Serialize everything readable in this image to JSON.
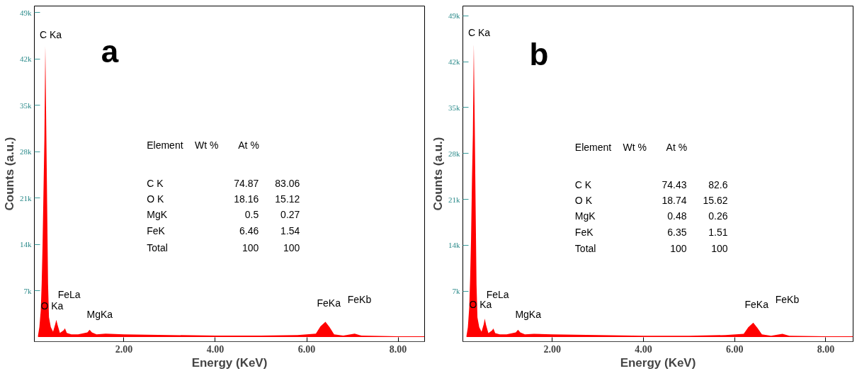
{
  "chart_data": [
    {
      "type": "area",
      "xlabel": "Energy (KeV)",
      "ylabel": "Counts (a.u.)",
      "x": [
        0.12,
        0.15,
        0.18,
        0.2,
        0.22,
        0.24,
        0.26,
        0.28,
        0.3,
        0.32,
        0.34,
        0.36,
        0.4,
        0.45,
        0.5,
        0.52,
        0.55,
        0.6,
        0.68,
        0.71,
        0.75,
        0.85,
        1.0,
        1.2,
        1.25,
        1.3,
        1.4,
        1.6,
        2.0,
        3.0,
        4.0,
        5.0,
        5.8,
        6.2,
        6.3,
        6.41,
        6.5,
        6.6,
        6.8,
        7.05,
        7.2,
        8.0,
        8.58
      ],
      "series": [
        {
          "color": "#ff0000",
          "values": [
            200,
            1500,
            4000,
            8000,
            14000,
            22000,
            30000,
            44000,
            32000,
            20000,
            8000,
            3000,
            1500,
            800,
            2000,
            2600,
            1800,
            600,
            1000,
            1300,
            600,
            400,
            400,
            700,
            1100,
            700,
            400,
            500,
            400,
            300,
            200,
            200,
            300,
            500,
            1600,
            2300,
            1500,
            400,
            200,
            500,
            200,
            100,
            100
          ]
        }
      ],
      "xlim": [
        0.04,
        8.58
      ],
      "ylim": [
        -700,
        50000
      ],
      "xticks": [
        {
          "value": 2,
          "label": "2.00"
        },
        {
          "value": 4,
          "label": "4.00"
        },
        {
          "value": 6,
          "label": "6.00"
        },
        {
          "value": 8,
          "label": "8.00"
        }
      ],
      "yticks": [
        {
          "value": 7000,
          "label": "7k"
        },
        {
          "value": 14000,
          "label": "14k"
        },
        {
          "value": 21000,
          "label": "21k"
        },
        {
          "value": 28000,
          "label": "28k"
        },
        {
          "value": 35000,
          "label": "35k"
        },
        {
          "value": 42000,
          "label": "42k"
        },
        {
          "value": 49000,
          "label": "49k"
        }
      ],
      "grid": false,
      "annotations": [
        "a",
        "Element",
        "Wt %",
        "At %",
        "C K",
        "74.87",
        "83.06",
        "O K",
        "18.16",
        "15.12",
        "MgK",
        "0.5",
        "0.27",
        "FeK",
        "6.46",
        "1.54",
        "Total",
        "100",
        "100",
        {
          "text": "C Ka",
          "x": 0.28,
          "y": 44000
        },
        {
          "text": "O Ka",
          "x": 0.52,
          "y": 2600
        },
        {
          "text": "FeLa",
          "x": 0.71,
          "y": 1300
        },
        {
          "text": "MgKa",
          "x": 1.25,
          "y": 1100
        },
        {
          "text": "FeKa",
          "x": 6.41,
          "y": 2300
        },
        {
          "text": "FeKb",
          "x": 7.05,
          "y": 500
        }
      ]
    },
    {
      "type": "area",
      "xlabel": "Energy (KeV)",
      "ylabel": "Counts (a.u.)",
      "x": [
        0.12,
        0.15,
        0.18,
        0.2,
        0.22,
        0.24,
        0.26,
        0.28,
        0.3,
        0.32,
        0.34,
        0.36,
        0.4,
        0.45,
        0.5,
        0.52,
        0.55,
        0.6,
        0.68,
        0.71,
        0.75,
        0.85,
        1.0,
        1.2,
        1.25,
        1.3,
        1.4,
        1.6,
        2.0,
        3.0,
        4.0,
        5.0,
        5.8,
        6.2,
        6.3,
        6.41,
        6.5,
        6.6,
        6.8,
        7.05,
        7.2,
        8.0,
        8.6
      ],
      "series": [
        {
          "color": "#ff0000",
          "values": [
            200,
            1500,
            4500,
            9000,
            15000,
            24000,
            31000,
            44700,
            33000,
            20000,
            8000,
            3000,
            1500,
            800,
            2000,
            2800,
            1800,
            600,
            1000,
            1300,
            600,
            400,
            400,
            700,
            1100,
            700,
            400,
            500,
            400,
            300,
            200,
            200,
            300,
            500,
            1500,
            2200,
            1400,
            400,
            200,
            500,
            200,
            100,
            100
          ]
        }
      ],
      "xlim": [
        0.04,
        8.6
      ],
      "ylim": [
        -700,
        50500
      ],
      "xticks": [
        {
          "value": 2,
          "label": "2.00"
        },
        {
          "value": 4,
          "label": "4.00"
        },
        {
          "value": 6,
          "label": "6.00"
        },
        {
          "value": 8,
          "label": "8.00"
        }
      ],
      "yticks": [
        {
          "value": 7000,
          "label": "7k"
        },
        {
          "value": 14000,
          "label": "14k"
        },
        {
          "value": 21000,
          "label": "21k"
        },
        {
          "value": 28000,
          "label": "28k"
        },
        {
          "value": 35000,
          "label": "35k"
        },
        {
          "value": 42000,
          "label": "42k"
        },
        {
          "value": 49000,
          "label": "49k"
        }
      ],
      "grid": false,
      "annotations": [
        "b",
        "Element",
        "Wt %",
        "At %",
        "C K",
        "74.43",
        "82.6",
        "O K",
        "18.74",
        "15.62",
        "MgK",
        "0.48",
        "0.26",
        "FeK",
        "6.35",
        "1.51",
        "Total",
        "100",
        "100",
        {
          "text": "C Ka",
          "x": 0.28,
          "y": 44700
        },
        {
          "text": "O Ka",
          "x": 0.52,
          "y": 2800
        },
        {
          "text": "FeLa",
          "x": 0.71,
          "y": 1300
        },
        {
          "text": "MgKa",
          "x": 1.25,
          "y": 1100
        },
        {
          "text": "FeKa",
          "x": 6.41,
          "y": 2200
        },
        {
          "text": "FeKb",
          "x": 7.05,
          "y": 500
        }
      ]
    }
  ]
}
